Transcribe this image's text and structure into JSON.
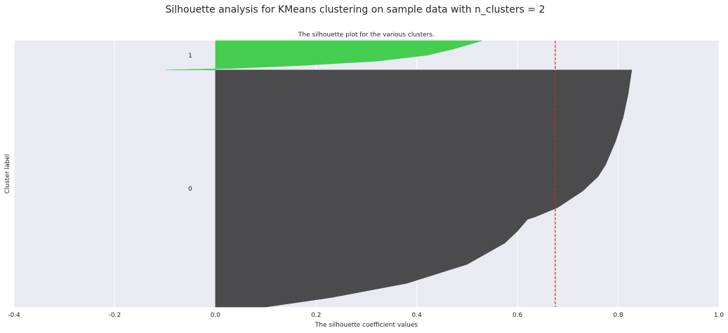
{
  "chart_data": {
    "type": "area",
    "suptitle": "Silhouette analysis for KMeans clustering on sample data with n_clusters = 2",
    "title": "The silhouette plot for the various clusters.",
    "xlabel": "The silhouette coefficient values",
    "ylabel": "Cluster label",
    "xlim": [
      -0.4,
      1.0
    ],
    "xticks": [
      -0.4,
      -0.2,
      0.0,
      0.2,
      0.4,
      0.6,
      0.8,
      1.0
    ],
    "xtick_labels": [
      "-0.4",
      "-0.2",
      "0.0",
      "0.2",
      "0.4",
      "0.6",
      "0.8",
      "1.0"
    ],
    "grid": true,
    "average_silhouette_score": 0.675,
    "average_line_color": "#d62728",
    "clusters": [
      {
        "label": "0",
        "color": "#474749",
        "size_fraction": 0.89,
        "profile": [
          [
            0.0,
            0.1
          ],
          [
            0.04,
            0.23
          ],
          [
            0.1,
            0.38
          ],
          [
            0.18,
            0.5
          ],
          [
            0.27,
            0.575
          ],
          [
            0.32,
            0.6
          ],
          [
            0.37,
            0.62
          ],
          [
            0.38,
            0.635
          ],
          [
            0.42,
            0.68
          ],
          [
            0.49,
            0.73
          ],
          [
            0.52,
            0.745
          ],
          [
            0.55,
            0.76
          ],
          [
            0.6,
            0.775
          ],
          [
            0.7,
            0.795
          ],
          [
            0.8,
            0.81
          ],
          [
            0.9,
            0.82
          ],
          [
            1.0,
            0.827
          ]
        ]
      },
      {
        "label": "1",
        "color": "#41cc4b",
        "size_fraction": 0.11,
        "profile": [
          [
            0.0,
            -0.1
          ],
          [
            0.05,
            0.03
          ],
          [
            0.15,
            0.17
          ],
          [
            0.3,
            0.32
          ],
          [
            0.5,
            0.42
          ],
          [
            0.7,
            0.47
          ],
          [
            0.85,
            0.5
          ],
          [
            1.0,
            0.53
          ]
        ]
      }
    ]
  }
}
